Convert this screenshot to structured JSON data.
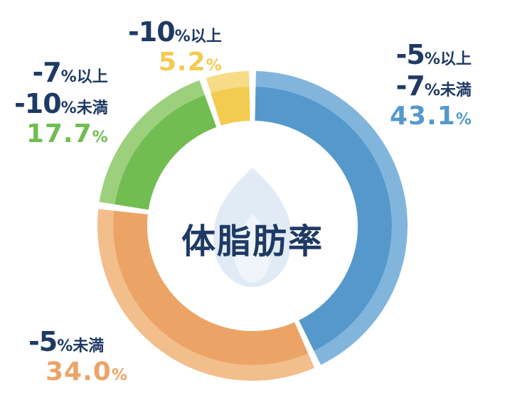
{
  "chart_data": {
    "type": "pie",
    "title": "体脂肪率",
    "slices": [
      {
        "line1_num": "-5",
        "line1_unit": "%以上",
        "line2_num": "-7",
        "line2_unit": "%未満",
        "value": 43.1,
        "value_label": "43.1",
        "color_inner": "#5599cc",
        "color_outer": "#82b5dc"
      },
      {
        "line1_num": "-5",
        "line1_unit": "%未満",
        "value": 34.0,
        "value_label": "34.0",
        "color_inner": "#eca466",
        "color_outer": "#f2be8c"
      },
      {
        "line1_num": "-7",
        "line1_unit": "%以上",
        "line2_num": "-10",
        "line2_unit": "%未満",
        "value": 17.7,
        "value_label": "17.7",
        "color_inner": "#72bd52",
        "color_outer": "#9dd07d"
      },
      {
        "line1_num": "-10",
        "line1_unit": "%以上",
        "value": 5.2,
        "value_label": "5.2",
        "color_inner": "#f3cb50",
        "color_outer": "#f7dc87"
      }
    ],
    "percent_symbol": "%",
    "label_color": "#1e3a64"
  }
}
